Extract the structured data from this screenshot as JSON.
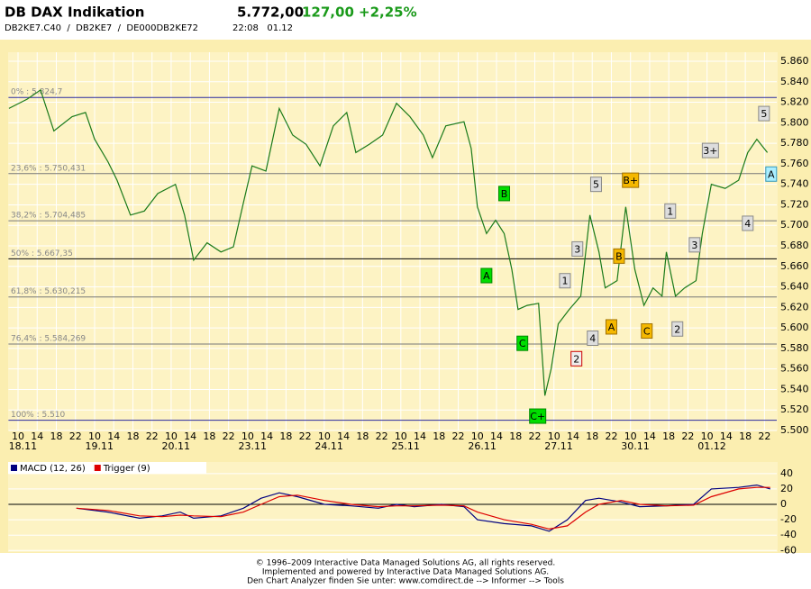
{
  "header": {
    "title": "DB DAX Indikation",
    "price": "5.772,00",
    "change": "127,00",
    "change_pct": "+2,25%",
    "codes": "DB2KE7.C40  /  DB2KE7  /  DE000DB2KE72",
    "time": "22:08   01.12"
  },
  "chart_data": [
    {
      "type": "line",
      "color": "#1a7a1a",
      "xlim": [
        0,
        160
      ],
      "ylim": [
        5.5,
        5.86
      ],
      "grid": true,
      "x": [
        0.1,
        3.9,
        6.7,
        9.5,
        13.3,
        16.1,
        18.0,
        20.8,
        22.7,
        25.5,
        28.4,
        31.2,
        34.9,
        36.8,
        38.7,
        41.5,
        44.4,
        47.0,
        49.1,
        50.9,
        53.8,
        56.6,
        59.4,
        62.2,
        65.1,
        67.9,
        70.7,
        72.6,
        75.4,
        78.2,
        81.1,
        83.9,
        86.7,
        88.6,
        91.4,
        95.2,
        96.7,
        98.0,
        99.9,
        101.8,
        103.6,
        105.2,
        106.5,
        108.4,
        110.8,
        112.1,
        113.4,
        114.9,
        117.2,
        119.6,
        121.5,
        123.4,
        124.7,
        127.2,
        129.0,
        130.9,
        132.8,
        134.7,
        136.6,
        137.5,
        139.4,
        141.3,
        143.7,
        145.0,
        146.9,
        149.8,
        152.6,
        154.5,
        156.4,
        158.6
      ],
      "values": [
        5.814,
        5.823,
        5.832,
        5.792,
        5.806,
        5.81,
        5.784,
        5.762,
        5.744,
        5.71,
        5.714,
        5.731,
        5.74,
        5.71,
        5.666,
        5.683,
        5.674,
        5.679,
        5.722,
        5.758,
        5.753,
        5.814,
        5.788,
        5.779,
        5.758,
        5.797,
        5.81,
        5.771,
        5.779,
        5.788,
        5.819,
        5.806,
        5.788,
        5.766,
        5.797,
        5.801,
        5.775,
        5.718,
        5.692,
        5.705,
        5.692,
        5.657,
        5.618,
        5.622,
        5.624,
        5.534,
        5.56,
        5.604,
        5.618,
        5.631,
        5.71,
        5.674,
        5.639,
        5.646,
        5.718,
        5.657,
        5.622,
        5.639,
        5.631,
        5.674,
        5.631,
        5.639,
        5.646,
        5.692,
        5.74,
        5.736,
        5.744,
        5.771,
        5.784,
        5.771
      ],
      "yticks": [
        {
          "value": 5.5,
          "label": "5.500"
        },
        {
          "value": 5.52,
          "label": "5.520"
        },
        {
          "value": 5.54,
          "label": "5.540"
        },
        {
          "value": 5.56,
          "label": "5.560"
        },
        {
          "value": 5.58,
          "label": "5.580"
        },
        {
          "value": 5.6,
          "label": "5.600"
        },
        {
          "value": 5.62,
          "label": "5.620"
        },
        {
          "value": 5.64,
          "label": "5.640"
        },
        {
          "value": 5.66,
          "label": "5.660"
        },
        {
          "value": 5.68,
          "label": "5.680"
        },
        {
          "value": 5.7,
          "label": "5.700"
        },
        {
          "value": 5.72,
          "label": "5.720"
        },
        {
          "value": 5.74,
          "label": "5.740"
        },
        {
          "value": 5.76,
          "label": "5.760"
        },
        {
          "value": 5.78,
          "label": "5.780"
        },
        {
          "value": 5.8,
          "label": "5.800"
        },
        {
          "value": 5.82,
          "label": "5.820"
        },
        {
          "value": 5.84,
          "label": "5.840"
        },
        {
          "value": 5.86,
          "label": "5.860"
        }
      ],
      "xticks": [
        {
          "value": 2,
          "label": "10"
        },
        {
          "value": 6,
          "label": "14"
        },
        {
          "value": 10,
          "label": "18"
        },
        {
          "value": 14,
          "label": "22"
        },
        {
          "value": 18,
          "label": "10"
        },
        {
          "value": 22,
          "label": "14"
        },
        {
          "value": 26,
          "label": "18"
        },
        {
          "value": 30,
          "label": "22"
        },
        {
          "value": 34,
          "label": "10"
        },
        {
          "value": 38,
          "label": "14"
        },
        {
          "value": 42,
          "label": "18"
        },
        {
          "value": 46,
          "label": "22"
        },
        {
          "value": 50,
          "label": "10"
        },
        {
          "value": 54,
          "label": "14"
        },
        {
          "value": 58,
          "label": "18"
        },
        {
          "value": 62,
          "label": "22"
        },
        {
          "value": 66,
          "label": "10"
        },
        {
          "value": 70,
          "label": "14"
        },
        {
          "value": 74,
          "label": "18"
        },
        {
          "value": 78,
          "label": "22"
        },
        {
          "value": 82,
          "label": "10"
        },
        {
          "value": 86,
          "label": "14"
        },
        {
          "value": 90,
          "label": "18"
        },
        {
          "value": 94,
          "label": "22"
        },
        {
          "value": 98,
          "label": "10"
        },
        {
          "value": 102,
          "label": "14"
        },
        {
          "value": 106,
          "label": "18"
        },
        {
          "value": 110,
          "label": "22"
        },
        {
          "value": 114,
          "label": "10"
        },
        {
          "value": 118,
          "label": "14"
        },
        {
          "value": 122,
          "label": "18"
        },
        {
          "value": 126,
          "label": "22"
        },
        {
          "value": 130,
          "label": "10"
        },
        {
          "value": 134,
          "label": "14"
        },
        {
          "value": 138,
          "label": "18"
        },
        {
          "value": 142,
          "label": "22"
        },
        {
          "value": 146,
          "label": "10"
        },
        {
          "value": 150,
          "label": "14"
        },
        {
          "value": 154,
          "label": "18"
        },
        {
          "value": 158,
          "label": "22"
        }
      ],
      "date_ticks": [
        {
          "value": 3,
          "label": "18.11"
        },
        {
          "value": 19,
          "label": "19.11"
        },
        {
          "value": 35,
          "label": "20.11"
        },
        {
          "value": 51,
          "label": "23.11"
        },
        {
          "value": 67,
          "label": "24.11"
        },
        {
          "value": 83,
          "label": "25.11"
        },
        {
          "value": 99,
          "label": "26.11"
        },
        {
          "value": 115,
          "label": "27.11"
        },
        {
          "value": 131,
          "label": "30.11"
        },
        {
          "value": 147,
          "label": "01.12"
        }
      ],
      "levels": [
        {
          "value": 5.8247,
          "label": "0% : 5.824,7",
          "color": "#2a2aa0"
        },
        {
          "value": 5.750431,
          "label": "23,6% : 5.750,431",
          "color": "#777777"
        },
        {
          "value": 5.704485,
          "label": "38,2% : 5.704,485",
          "color": "#777777"
        },
        {
          "value": 5.66735,
          "label": "50% : 5.667,35",
          "color": "#000000"
        },
        {
          "value": 5.630215,
          "label": "61,8% : 5.630,215",
          "color": "#777777"
        },
        {
          "value": 5.584269,
          "label": "76,4% : 5.584,269",
          "color": "#777777"
        },
        {
          "value": 5.51,
          "label": "100% : 5.510",
          "color": "#2a2aa0"
        }
      ],
      "annotations": [
        {
          "text": "B",
          "x": 103.6,
          "y": 5.731,
          "color": "#00dd00",
          "border": "#008800"
        },
        {
          "text": "A",
          "x": 99.9,
          "y": 5.651,
          "color": "#00dd00",
          "border": "#008800"
        },
        {
          "text": "C",
          "x": 107.4,
          "y": 5.585,
          "color": "#00dd00",
          "border": "#008800"
        },
        {
          "text": "C+",
          "x": 110.6,
          "y": 5.514,
          "color": "#00dd00",
          "border": "#008800"
        },
        {
          "text": "5",
          "x": 122.8,
          "y": 5.74,
          "color": "#dddddd",
          "border": "#888888"
        },
        {
          "text": "B+",
          "x": 130.0,
          "y": 5.744,
          "color": "#f5b800",
          "border": "#a07000"
        },
        {
          "text": "3",
          "x": 118.9,
          "y": 5.677,
          "color": "#dddddd",
          "border": "#888888"
        },
        {
          "text": "1",
          "x": 116.3,
          "y": 5.646,
          "color": "#dddddd",
          "border": "#888888"
        },
        {
          "text": "4",
          "x": 122.1,
          "y": 5.59,
          "color": "#dddddd",
          "border": "#888888"
        },
        {
          "text": "2",
          "x": 118.7,
          "y": 5.57,
          "color": "#eeeeee",
          "border": "#cc0000"
        },
        {
          "text": "A",
          "x": 126.0,
          "y": 5.601,
          "color": "#f5b800",
          "border": "#a07000"
        },
        {
          "text": "B",
          "x": 127.6,
          "y": 5.67,
          "color": "#f5b800",
          "border": "#a07000"
        },
        {
          "text": "C",
          "x": 133.4,
          "y": 5.597,
          "color": "#f5b800",
          "border": "#a07000"
        },
        {
          "text": "1",
          "x": 138.3,
          "y": 5.714,
          "color": "#dddddd",
          "border": "#888888"
        },
        {
          "text": "2",
          "x": 139.8,
          "y": 5.599,
          "color": "#dddddd",
          "border": "#888888"
        },
        {
          "text": "3",
          "x": 143.4,
          "y": 5.681,
          "color": "#dddddd",
          "border": "#888888"
        },
        {
          "text": "3+",
          "x": 146.7,
          "y": 5.773,
          "color": "#dddddd",
          "border": "#888888"
        },
        {
          "text": "4",
          "x": 154.5,
          "y": 5.702,
          "color": "#dddddd",
          "border": "#888888"
        },
        {
          "text": "5",
          "x": 157.9,
          "y": 5.809,
          "color": "#dddddd",
          "border": "#888888"
        },
        {
          "text": "A",
          "x": 159.4,
          "y": 5.75,
          "color": "#aaeeff",
          "border": "#3399bb"
        }
      ]
    },
    {
      "type": "line",
      "xlim": [
        0,
        160
      ],
      "ylim": [
        -62,
        55
      ],
      "yticks": [
        40,
        20,
        0,
        -20,
        -40,
        -60
      ],
      "x": [
        14.2,
        20.8,
        27.4,
        32.1,
        35.9,
        38.7,
        44.4,
        49.1,
        52.8,
        56.6,
        60.4,
        66.0,
        71.6,
        77.3,
        81.1,
        84.8,
        90.5,
        95.2,
        98.0,
        103.6,
        109.3,
        113.0,
        116.8,
        120.6,
        123.4,
        128.1,
        131.9,
        137.5,
        143.2,
        146.9,
        152.6,
        156.4,
        159.2
      ],
      "series": [
        {
          "name": "MACD (12, 26)",
          "color": "#000080",
          "values": [
            -5,
            -10,
            -18,
            -15,
            -10,
            -18,
            -15,
            -5,
            8,
            15,
            10,
            0,
            -2,
            -5,
            0,
            -3,
            0,
            -3,
            -20,
            -25,
            -28,
            -35,
            -20,
            5,
            8,
            3,
            -3,
            -2,
            0,
            20,
            22,
            25,
            20
          ]
        },
        {
          "name": "Trigger (9)",
          "color": "#dd0000",
          "values": [
            -5,
            -8,
            -15,
            -16,
            -14,
            -15,
            -16,
            -10,
            0,
            10,
            12,
            5,
            0,
            -3,
            -2,
            -2,
            -1,
            -2,
            -10,
            -20,
            -26,
            -32,
            -28,
            -10,
            0,
            5,
            0,
            -2,
            -1,
            10,
            20,
            22,
            22
          ]
        }
      ]
    }
  ],
  "footer": [
    "© 1996–2009 Interactive Data Managed Solutions AG, all rights reserved.",
    "Implemented and powered by Interactive Data Managed Solutions AG.",
    "Den Chart Analyzer finden Sie unter: www.comdirect.de --> Informer --> Tools"
  ]
}
